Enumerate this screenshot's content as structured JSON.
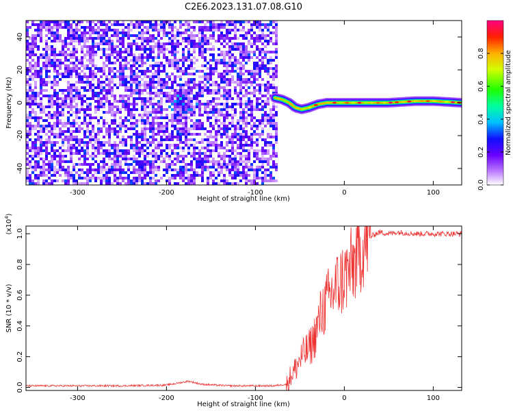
{
  "title": "C2E6.2023.131.07.08.G10",
  "chart_data": [
    {
      "type": "heatmap",
      "xlabel": "Height of straight line (km)",
      "ylabel": "Frequency (Hz)",
      "xlim": [
        -358,
        132
      ],
      "ylim": [
        -50,
        50
      ],
      "xticks": [
        -300,
        -200,
        -100,
        0,
        100
      ],
      "yticks": [
        -40,
        -20,
        0,
        20,
        40
      ],
      "noise_region_x": [
        -358,
        -75
      ],
      "signal_trace": {
        "x": [
          -78,
          -70,
          -62,
          -55,
          -48,
          -40,
          -30,
          -20,
          -10,
          0,
          20,
          50,
          80,
          100,
          132
        ],
        "y": [
          3,
          2,
          0,
          -3,
          -4,
          -3,
          -1,
          0,
          0,
          0,
          0,
          0,
          1,
          1,
          0
        ]
      },
      "colorbar": {
        "label": "Normalized spectral amplitude",
        "range": [
          0.0,
          1.0
        ],
        "ticks": [
          0.0,
          0.2,
          0.4,
          0.6,
          0.8
        ]
      }
    },
    {
      "type": "line",
      "xlabel": "Height of straight line (km)",
      "ylabel": "SNR (10 * v/v)",
      "yscale_label": "(x10",
      "yscale_exp": "4",
      "yscale_close": ")",
      "xlim": [
        -358,
        132
      ],
      "ylim": [
        -0.02,
        1.05
      ],
      "xticks": [
        -300,
        -200,
        -100,
        0,
        100
      ],
      "yticks": [
        0.0,
        0.2,
        0.4,
        0.6,
        0.8,
        1.0
      ],
      "series": [
        {
          "color": "#ee3333",
          "x": [
            -358,
            -300,
            -250,
            -200,
            -185,
            -175,
            -160,
            -130,
            -100,
            -80,
            -65,
            -60,
            -55,
            -50,
            -45,
            -40,
            -35,
            -30,
            -25,
            -20,
            -15,
            -10,
            -5,
            0,
            5,
            10,
            15,
            20,
            25,
            30,
            35,
            40,
            50,
            60,
            80,
            100,
            132
          ],
          "y": [
            0.01,
            0.01,
            0.01,
            0.015,
            0.03,
            0.04,
            0.02,
            0.01,
            0.01,
            0.01,
            0.02,
            0.08,
            0.12,
            0.18,
            0.22,
            0.25,
            0.3,
            0.4,
            0.5,
            0.55,
            0.6,
            0.65,
            0.68,
            0.72,
            0.75,
            0.8,
            0.85,
            0.9,
            0.95,
            0.98,
            1.0,
            1.01,
            1.0,
            1.01,
            1.0,
            1.0,
            1.0
          ]
        }
      ]
    }
  ]
}
